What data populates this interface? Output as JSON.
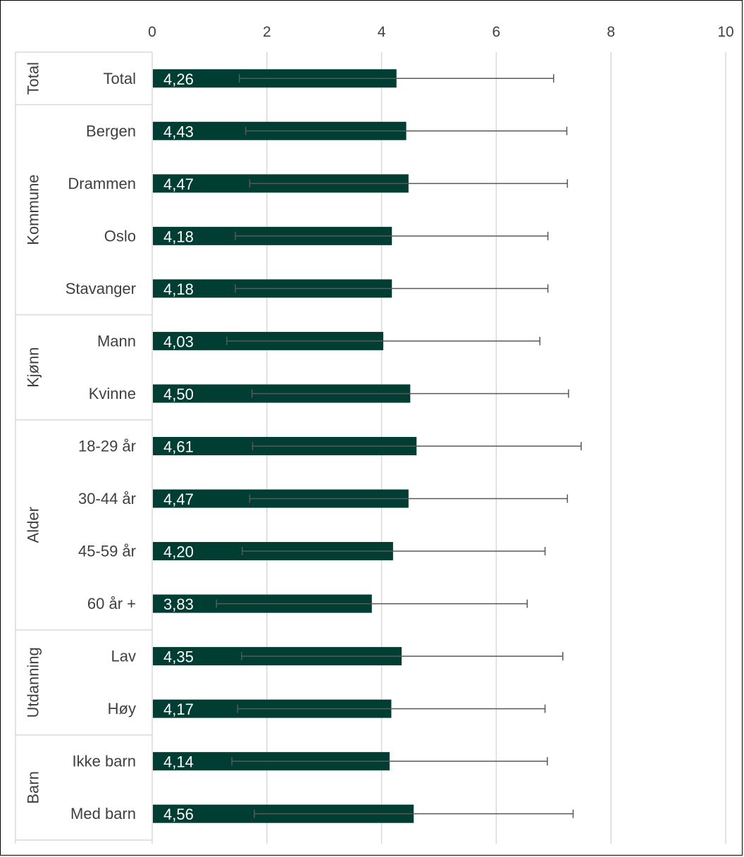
{
  "chart_data": {
    "type": "bar",
    "orientation": "horizontal",
    "title": "",
    "xlabel": "",
    "ylabel": "",
    "xlim": [
      0,
      10
    ],
    "x_ticks": [
      "0",
      "2",
      "4",
      "6",
      "8",
      "10"
    ],
    "grid": true,
    "bar_color": "#003D33",
    "error_bar_color": "#595959",
    "groups": [
      {
        "name": "Total",
        "categories": [
          "Total"
        ]
      },
      {
        "name": "Kommune",
        "categories": [
          "Bergen",
          "Drammen",
          "Oslo",
          "Stavanger"
        ]
      },
      {
        "name": "Kjønn",
        "categories": [
          "Mann",
          "Kvinne"
        ]
      },
      {
        "name": "Alder",
        "categories": [
          "18-29 år",
          "30-44 år",
          "45-59 år",
          "60 år +"
        ]
      },
      {
        "name": "Utdanning",
        "categories": [
          "Lav",
          "Høy"
        ]
      },
      {
        "name": "Barn",
        "categories": [
          "Ikke barn",
          "Med barn"
        ]
      }
    ],
    "categories": [
      "Total",
      "Bergen",
      "Drammen",
      "Oslo",
      "Stavanger",
      "Mann",
      "Kvinne",
      "18-29 år",
      "30-44 år",
      "45-59 år",
      "60 år +",
      "Lav",
      "Høy",
      "Ikke barn",
      "Med barn"
    ],
    "values": [
      4.26,
      4.43,
      4.47,
      4.18,
      4.18,
      4.03,
      4.5,
      4.61,
      4.47,
      4.2,
      3.83,
      4.35,
      4.17,
      4.14,
      4.56
    ],
    "value_labels": [
      "4,26",
      "4,43",
      "4,47",
      "4,18",
      "4,18",
      "4,03",
      "4,50",
      "4,61",
      "4,47",
      "4,20",
      "3,83",
      "4,35",
      "4,17",
      "4,14",
      "4,56"
    ],
    "error_low": [
      1.52,
      1.63,
      1.7,
      1.45,
      1.45,
      1.3,
      1.74,
      1.75,
      1.7,
      1.57,
      1.12,
      1.56,
      1.49,
      1.39,
      1.78
    ],
    "error_high": [
      7.0,
      7.23,
      7.24,
      6.9,
      6.9,
      6.76,
      7.26,
      7.48,
      7.24,
      6.85,
      6.54,
      7.16,
      6.85,
      6.89,
      7.34
    ]
  }
}
